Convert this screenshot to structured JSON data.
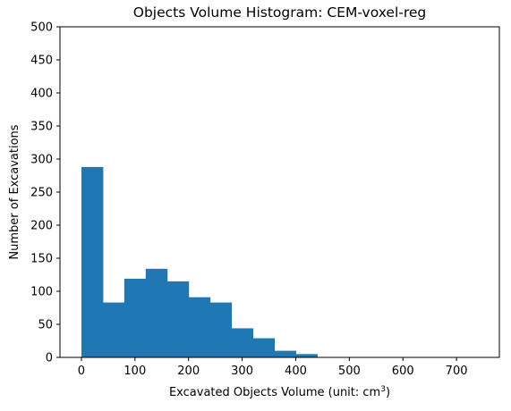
{
  "chart_data": {
    "type": "bar",
    "title": "Objects Volume Histogram: CEM-voxel-reg",
    "xlabel": "Excavated Objects Volume (unit: cm",
    "xlabel_sup": "3",
    "xlabel_close": ")",
    "ylabel": "Number of Excavations",
    "xlim": [
      -40,
      780
    ],
    "ylim": [
      0,
      500
    ],
    "xticks": [
      0,
      100,
      200,
      300,
      400,
      500,
      600,
      700
    ],
    "yticks": [
      0,
      50,
      100,
      150,
      200,
      250,
      300,
      350,
      400,
      450,
      500
    ],
    "bin_edges": [
      0,
      40,
      80,
      120,
      160,
      200,
      240,
      280,
      320,
      360,
      400,
      440
    ],
    "values": [
      288,
      83,
      119,
      134,
      115,
      91,
      83,
      44,
      29,
      10,
      5
    ],
    "bar_color": "#1f77b4",
    "grid": false,
    "legend": "none"
  }
}
